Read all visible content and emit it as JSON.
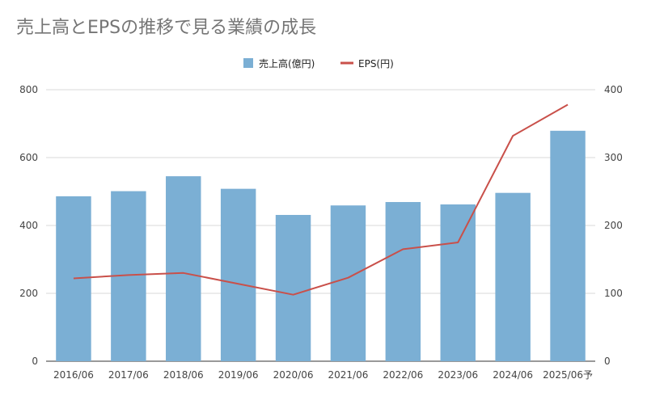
{
  "chart_data": {
    "type": "bar",
    "title": "売上高とEPSの推移で見る業績の成長",
    "categories": [
      "2016/06",
      "2017/06",
      "2018/06",
      "2019/06",
      "2020/06",
      "2021/06",
      "2022/06",
      "2023/06",
      "2024/06",
      "2025/06予"
    ],
    "series": [
      {
        "name": "売上高(億円)",
        "type": "bar",
        "axis": "left",
        "color": "#7bafd4",
        "values": [
          486,
          501,
          545,
          508,
          431,
          459,
          469,
          462,
          496,
          679
        ]
      },
      {
        "name": "EPS(円)",
        "type": "line",
        "axis": "right",
        "color": "#c9504a",
        "values": [
          122,
          127,
          130,
          114,
          98,
          123,
          165,
          175,
          332,
          378
        ]
      }
    ],
    "y_left": {
      "min": 0,
      "max": 800,
      "ticks": [
        0,
        200,
        400,
        600,
        800
      ]
    },
    "y_right": {
      "min": 0,
      "max": 400,
      "ticks": [
        0,
        100,
        200,
        300,
        400
      ]
    },
    "grid": true,
    "legend": "top-center"
  }
}
